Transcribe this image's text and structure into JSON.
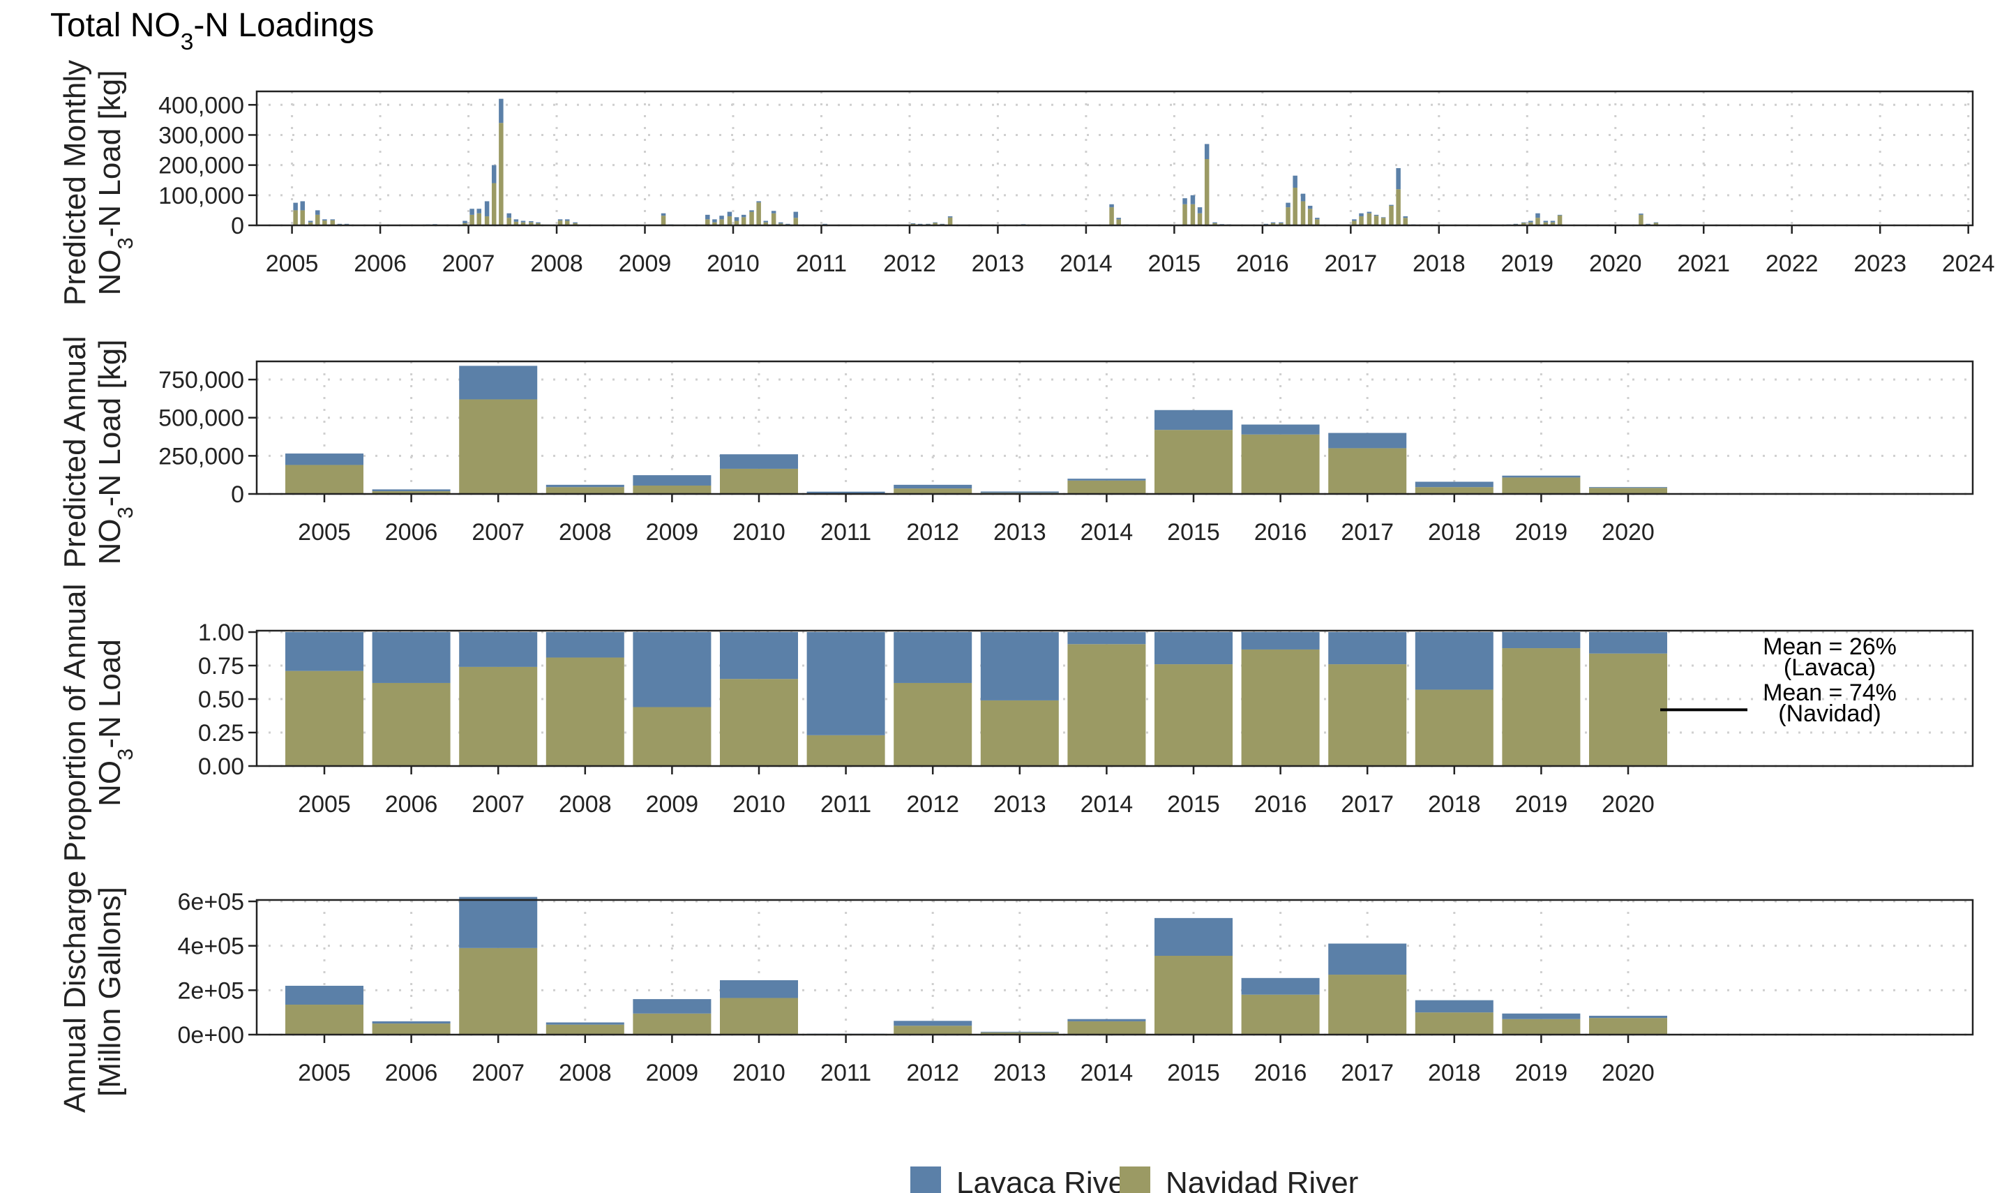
{
  "title": "Total NO3-N Loadings",
  "colors": {
    "lavaca": "#5b80a8",
    "navidad": "#9b9a64",
    "grid": "#cfcfcf"
  },
  "legend": [
    {
      "label": "Lavaca River",
      "color": "#5b80a8"
    },
    {
      "label": "Navidad River",
      "color": "#9b9a64"
    }
  ],
  "annotation": {
    "lines": [
      "Mean = 26%",
      "(Lavaca)",
      "Mean = 74%",
      "(Navidad)"
    ]
  },
  "chart_data": [
    {
      "type": "bar",
      "stacked": true,
      "ylabel": "Predicted Monthly NO3-N Load [kg]",
      "ylim": [
        0,
        440000
      ],
      "yticks": [
        0,
        100000,
        200000,
        300000,
        400000
      ],
      "ytick_labels": [
        "0",
        "100,000",
        "200,000",
        "300,000",
        "400,000"
      ],
      "xlim": [
        2004.6,
        2024.05
      ],
      "xticks": [
        2005,
        2006,
        2007,
        2008,
        2009,
        2010,
        2011,
        2012,
        2013,
        2014,
        2015,
        2016,
        2017,
        2018,
        2019,
        2020,
        2021,
        2022,
        2023,
        2024
      ],
      "grid": true,
      "x": [
        2005.04,
        2005.12,
        2005.21,
        2005.29,
        2005.37,
        2005.46,
        2005.54,
        2005.62,
        2006.54,
        2006.62,
        2006.96,
        2007.04,
        2007.12,
        2007.21,
        2007.29,
        2007.37,
        2007.46,
        2007.54,
        2007.62,
        2007.71,
        2007.79,
        2008.04,
        2008.12,
        2008.21,
        2009.21,
        2009.29,
        2009.71,
        2009.79,
        2009.87,
        2009.96,
        2010.04,
        2010.12,
        2010.21,
        2010.29,
        2010.37,
        2010.46,
        2010.54,
        2010.62,
        2010.71,
        2011.04,
        2012.04,
        2012.12,
        2012.21,
        2012.29,
        2012.37,
        2012.46,
        2013.29,
        2014.29,
        2014.37,
        2014.46,
        2015.12,
        2015.21,
        2015.29,
        2015.37,
        2015.46,
        2015.54,
        2015.62,
        2016.04,
        2016.12,
        2016.21,
        2016.29,
        2016.37,
        2016.46,
        2016.54,
        2016.62,
        2017.04,
        2017.12,
        2017.21,
        2017.29,
        2017.37,
        2017.46,
        2017.54,
        2017.62,
        2017.71,
        2018.79,
        2018.87,
        2018.96,
        2019.04,
        2019.12,
        2019.21,
        2019.29,
        2019.37,
        2020.29,
        2020.37,
        2020.46,
        2020.71
      ],
      "series": [
        {
          "name": "Lavaca River",
          "values": [
            25000,
            30000,
            5000,
            15000,
            4000,
            3000,
            2000,
            2000,
            1000,
            1500,
            8000,
            20000,
            15000,
            50000,
            60000,
            80000,
            15000,
            8000,
            5000,
            4000,
            3000,
            4000,
            5000,
            3000,
            8000,
            1500,
            15000,
            10000,
            12000,
            15000,
            12000,
            8000,
            5000,
            4000,
            5000,
            8000,
            4000,
            2000,
            20000,
            2000,
            2000,
            2000,
            1500,
            2000,
            1500,
            4000,
            1500,
            10000,
            5000,
            1000,
            20000,
            30000,
            20000,
            50000,
            3000,
            1500,
            1000,
            2000,
            3000,
            3000,
            15000,
            40000,
            25000,
            10000,
            5000,
            5000,
            10000,
            5000,
            3000,
            2000,
            3000,
            70000,
            5000,
            1000,
            1000,
            1500,
            2000,
            5000,
            15000,
            5000,
            5000,
            2000,
            4000,
            2000,
            2000,
            1000
          ]
        },
        {
          "name": "Navidad River",
          "values": [
            50000,
            50000,
            10000,
            35000,
            16000,
            17000,
            3000,
            3000,
            2000,
            2500,
            7000,
            35000,
            40000,
            30000,
            140000,
            340000,
            25000,
            12000,
            10000,
            10000,
            7000,
            16000,
            15000,
            7000,
            32000,
            1500,
            20000,
            10000,
            20000,
            30000,
            15000,
            27000,
            45000,
            76000,
            10000,
            40000,
            6000,
            3000,
            25000,
            3000,
            5000,
            3000,
            3500,
            8000,
            3500,
            26000,
            2500,
            60000,
            20000,
            2000,
            70000,
            70000,
            40000,
            220000,
            7000,
            2500,
            2000,
            3000,
            7000,
            7000,
            60000,
            125000,
            80000,
            55000,
            20000,
            15000,
            30000,
            40000,
            32000,
            25000,
            65000,
            120000,
            25000,
            2000,
            2000,
            3500,
            8000,
            10000,
            25000,
            10000,
            10000,
            33000,
            35000,
            3000,
            8000,
            2000
          ]
        }
      ]
    },
    {
      "type": "bar",
      "stacked": true,
      "ylabel": "Predicted Annual NO3-N Load [kg]",
      "ylim": [
        0,
        860000
      ],
      "yticks": [
        0,
        250000,
        500000,
        750000
      ],
      "ytick_labels": [
        "0",
        "250,000",
        "500,000",
        "750,000"
      ],
      "categories": [
        "2005",
        "2006",
        "2007",
        "2008",
        "2009",
        "2010",
        "2011",
        "2012",
        "2013",
        "2014",
        "2015",
        "2016",
        "2017",
        "2018",
        "2019",
        "2020"
      ],
      "grid": true,
      "series": [
        {
          "name": "Lavaca River",
          "values": [
            75000,
            12000,
            220000,
            15000,
            68000,
            95000,
            12000,
            24000,
            8000,
            12000,
            130000,
            65000,
            100000,
            35000,
            12000,
            5000
          ]
        },
        {
          "name": "Navidad River",
          "values": [
            190000,
            18000,
            620000,
            45000,
            55000,
            165000,
            3000,
            36000,
            8000,
            88000,
            420000,
            390000,
            300000,
            45000,
            108000,
            40000
          ]
        }
      ]
    },
    {
      "type": "bar",
      "stacked": true,
      "ylabel": "Proportion of Annual NO3-N Load",
      "ylim": [
        0,
        1
      ],
      "yticks": [
        0,
        0.25,
        0.5,
        0.75,
        1
      ],
      "ytick_labels": [
        "0.00",
        "0.25",
        "0.50",
        "0.75",
        "1.00"
      ],
      "categories": [
        "2005",
        "2006",
        "2007",
        "2008",
        "2009",
        "2010",
        "2011",
        "2012",
        "2013",
        "2014",
        "2015",
        "2016",
        "2017",
        "2018",
        "2019",
        "2020"
      ],
      "grid": true,
      "series": [
        {
          "name": "Lavaca River",
          "values": [
            0.29,
            0.38,
            0.26,
            0.19,
            0.56,
            0.35,
            0.77,
            0.38,
            0.51,
            0.09,
            0.24,
            0.13,
            0.24,
            0.43,
            0.12,
            0.16
          ]
        },
        {
          "name": "Navidad River",
          "values": [
            0.71,
            0.62,
            0.74,
            0.81,
            0.44,
            0.65,
            0.23,
            0.62,
            0.49,
            0.91,
            0.76,
            0.87,
            0.76,
            0.57,
            0.88,
            0.84
          ]
        }
      ]
    },
    {
      "type": "bar",
      "stacked": true,
      "ylabel": "Annual Discharge [Millon Gallons]",
      "ylim": [
        0,
        600000
      ],
      "yticks": [
        0,
        200000,
        400000,
        600000
      ],
      "ytick_labels": [
        "0e+00",
        "2e+05",
        "4e+05",
        "6e+05"
      ],
      "categories": [
        "2005",
        "2006",
        "2007",
        "2008",
        "2009",
        "2010",
        "2011",
        "2012",
        "2013",
        "2014",
        "2015",
        "2016",
        "2017",
        "2018",
        "2019",
        "2020"
      ],
      "grid": true,
      "series": [
        {
          "name": "Lavaca River",
          "values": [
            85000,
            10000,
            230000,
            10000,
            65000,
            80000,
            2000,
            22000,
            3000,
            10000,
            170000,
            75000,
            140000,
            55000,
            25000,
            10000
          ]
        },
        {
          "name": "Navidad River",
          "values": [
            135000,
            50000,
            390000,
            45000,
            95000,
            165000,
            2000,
            40000,
            10000,
            60000,
            355000,
            180000,
            270000,
            100000,
            70000,
            75000
          ]
        }
      ]
    }
  ]
}
